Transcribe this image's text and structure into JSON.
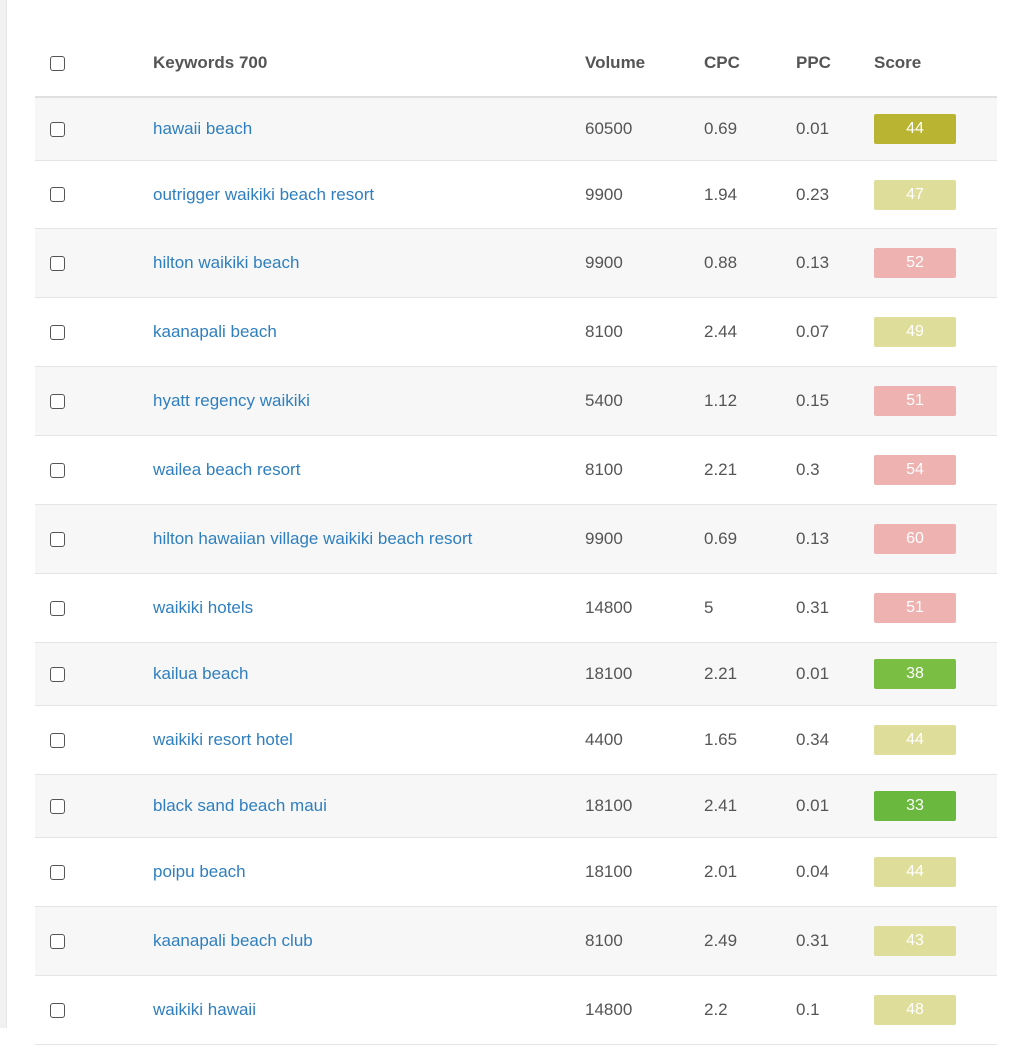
{
  "table": {
    "headers": {
      "keyword": "Keywords 700",
      "volume": "Volume",
      "cpc": "CPC",
      "ppc": "PPC",
      "score": "Score"
    },
    "rows": [
      {
        "keyword": "hawaii beach",
        "volume": "60500",
        "cpc": "0.69",
        "ppc": "0.01",
        "score": "44",
        "score_color": "#b9b532"
      },
      {
        "keyword": "outrigger waikiki beach resort",
        "volume": "9900",
        "cpc": "1.94",
        "ppc": "0.23",
        "score": "47",
        "score_color": "#dedd99"
      },
      {
        "keyword": "hilton waikiki beach",
        "volume": "9900",
        "cpc": "0.88",
        "ppc": "0.13",
        "score": "52",
        "score_color": "#eeb2b0"
      },
      {
        "keyword": "kaanapali beach",
        "volume": "8100",
        "cpc": "2.44",
        "ppc": "0.07",
        "score": "49",
        "score_color": "#dedd99"
      },
      {
        "keyword": "hyatt regency waikiki",
        "volume": "5400",
        "cpc": "1.12",
        "ppc": "0.15",
        "score": "51",
        "score_color": "#eeb2b0"
      },
      {
        "keyword": "wailea beach resort",
        "volume": "8100",
        "cpc": "2.21",
        "ppc": "0.3",
        "score": "54",
        "score_color": "#eeb2b0"
      },
      {
        "keyword": "hilton hawaiian village waikiki beach resort",
        "volume": "9900",
        "cpc": "0.69",
        "ppc": "0.13",
        "score": "60",
        "score_color": "#eeb2b0"
      },
      {
        "keyword": "waikiki hotels",
        "volume": "14800",
        "cpc": "5",
        "ppc": "0.31",
        "score": "51",
        "score_color": "#eeb2b0"
      },
      {
        "keyword": "kailua beach",
        "volume": "18100",
        "cpc": "2.21",
        "ppc": "0.01",
        "score": "38",
        "score_color": "#7abf43"
      },
      {
        "keyword": "waikiki resort hotel",
        "volume": "4400",
        "cpc": "1.65",
        "ppc": "0.34",
        "score": "44",
        "score_color": "#dedd99"
      },
      {
        "keyword": "black sand beach maui",
        "volume": "18100",
        "cpc": "2.41",
        "ppc": "0.01",
        "score": "33",
        "score_color": "#6bb83e"
      },
      {
        "keyword": "poipu beach",
        "volume": "18100",
        "cpc": "2.01",
        "ppc": "0.04",
        "score": "44",
        "score_color": "#dedd99"
      },
      {
        "keyword": "kaanapali beach club",
        "volume": "8100",
        "cpc": "2.49",
        "ppc": "0.31",
        "score": "43",
        "score_color": "#dedd99"
      },
      {
        "keyword": "waikiki hawaii",
        "volume": "14800",
        "cpc": "2.2",
        "ppc": "0.1",
        "score": "48",
        "score_color": "#dedd99"
      }
    ]
  }
}
